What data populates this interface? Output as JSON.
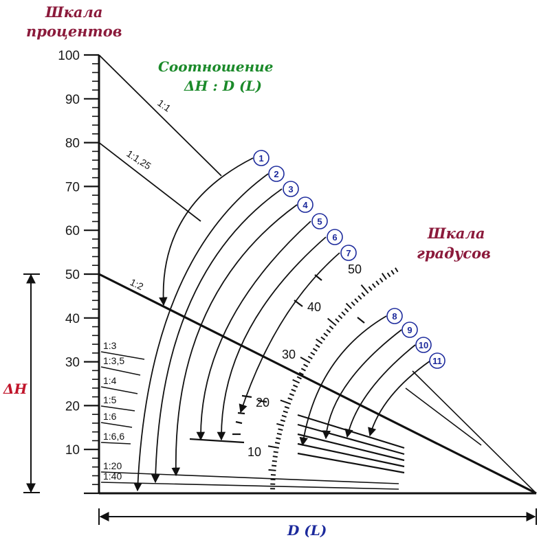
{
  "titles": {
    "percent_scale": [
      "Шкала",
      "процентов"
    ],
    "ratio": [
      "Соотношение",
      "ΔH : D (L)"
    ],
    "degree_scale": [
      "Шкала",
      "градусов"
    ],
    "delta_h": "ΔH",
    "distance": "D (L)"
  },
  "percent_axis": {
    "ticks": [
      100,
      90,
      80,
      70,
      60,
      50,
      40,
      30,
      20,
      10
    ],
    "max": 100
  },
  "ratio_lines": [
    {
      "label": "1:1",
      "percent": 100
    },
    {
      "label": "1:1,25",
      "percent": 80
    },
    {
      "label": "1:2",
      "percent": 50
    },
    {
      "label": "1:3",
      "percent": 33.3
    },
    {
      "label": "1:3,5",
      "percent": 28.6
    },
    {
      "label": "1:4",
      "percent": 25
    },
    {
      "label": "1:5",
      "percent": 20
    },
    {
      "label": "1:6",
      "percent": 16.7
    },
    {
      "label": "1:6,6",
      "percent": 15
    },
    {
      "label": "1:20",
      "percent": 5
    },
    {
      "label": "1:40",
      "percent": 2.5
    }
  ],
  "degree_scale": {
    "labels": [
      "10",
      "20",
      "30",
      "40",
      "50"
    ]
  },
  "numbered_markers": [
    "1",
    "2",
    "3",
    "4",
    "5",
    "6",
    "7",
    "8",
    "9",
    "10",
    "11"
  ],
  "colors": {
    "maroon": "#8b1a3b",
    "green": "#1b8a2a",
    "red": "#c0142a",
    "blue": "#1c2a9c",
    "ink": "#111111"
  }
}
